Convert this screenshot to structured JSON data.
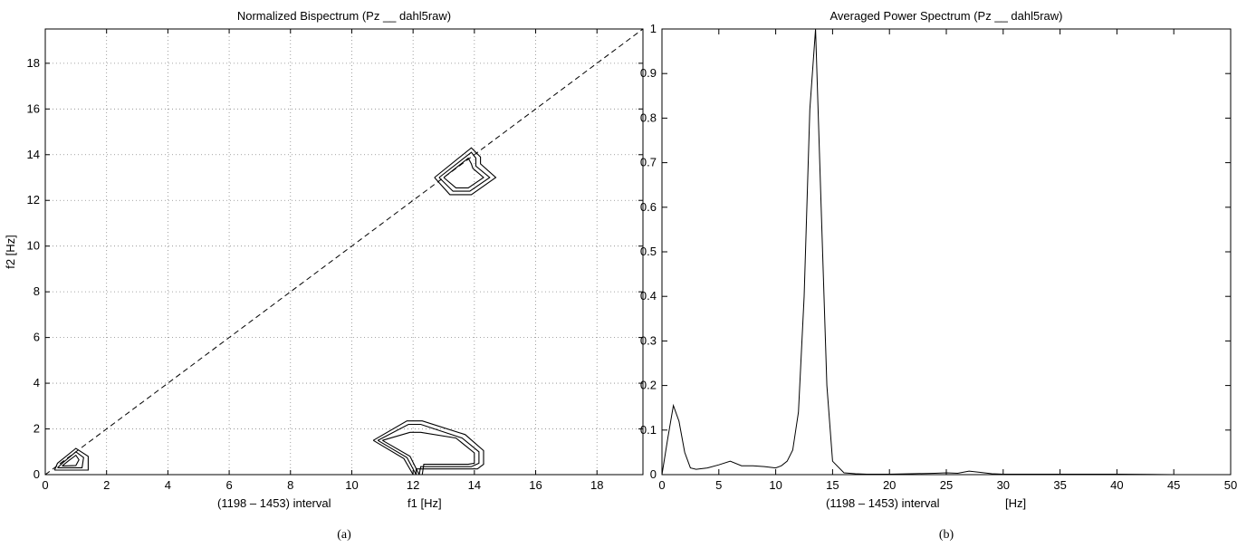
{
  "chart_data": [
    {
      "type": "contour",
      "title": "Normalized Bispectrum (Pz __ dahl5raw)",
      "xlabel": "f1 [Hz]",
      "xlabel_left": "(1198 – 1453) interval",
      "ylabel": "f2 [Hz]",
      "xlim": [
        0,
        19.5
      ],
      "ylim": [
        0,
        19.5
      ],
      "xticks": [
        "0",
        "2",
        "4",
        "6",
        "8",
        "10",
        "12",
        "14",
        "16",
        "18"
      ],
      "yticks": [
        "0",
        "2",
        "4",
        "6",
        "8",
        "10",
        "12",
        "14",
        "16",
        "18"
      ],
      "grid": true,
      "diagonal": [
        [
          0,
          0
        ],
        [
          19.5,
          19.5
        ]
      ],
      "contours": [
        [
          [
            0.3,
            0.2
          ],
          [
            0.4,
            0.5
          ],
          [
            1.0,
            1.15
          ],
          [
            1.4,
            0.8
          ],
          [
            1.4,
            0.2
          ],
          [
            0.3,
            0.2
          ]
        ],
        [
          [
            0.4,
            0.3
          ],
          [
            0.6,
            0.55
          ],
          [
            1.0,
            1.0
          ],
          [
            1.25,
            0.75
          ],
          [
            1.2,
            0.3
          ],
          [
            0.4,
            0.3
          ]
        ],
        [
          [
            0.55,
            0.38
          ],
          [
            0.75,
            0.6
          ],
          [
            1.0,
            0.85
          ],
          [
            1.1,
            0.65
          ],
          [
            1.0,
            0.4
          ],
          [
            0.55,
            0.38
          ]
        ],
        [
          [
            12.7,
            13.0
          ],
          [
            13.9,
            14.3
          ],
          [
            14.2,
            13.9
          ],
          [
            14.2,
            13.6
          ],
          [
            14.7,
            13.0
          ],
          [
            13.9,
            12.25
          ],
          [
            13.2,
            12.25
          ],
          [
            12.7,
            13.0
          ]
        ],
        [
          [
            12.85,
            13.0
          ],
          [
            13.9,
            14.1
          ],
          [
            14.05,
            13.85
          ],
          [
            14.05,
            13.5
          ],
          [
            14.5,
            13.0
          ],
          [
            13.85,
            12.4
          ],
          [
            13.3,
            12.4
          ],
          [
            12.85,
            13.0
          ]
        ],
        [
          [
            13.0,
            13.0
          ],
          [
            13.8,
            13.85
          ],
          [
            13.9,
            13.6
          ],
          [
            13.95,
            13.4
          ],
          [
            14.3,
            13.0
          ],
          [
            13.8,
            12.55
          ],
          [
            13.4,
            12.55
          ],
          [
            13.0,
            13.0
          ]
        ],
        [
          [
            10.7,
            1.5
          ],
          [
            11.8,
            2.35
          ],
          [
            12.3,
            2.35
          ],
          [
            13.7,
            1.75
          ],
          [
            14.3,
            1.05
          ],
          [
            14.3,
            0.45
          ],
          [
            14.1,
            0.25
          ],
          [
            12.1,
            0.25
          ],
          [
            12.1,
            0
          ],
          [
            12.0,
            0
          ],
          [
            11.7,
            0.7
          ],
          [
            10.7,
            1.5
          ]
        ],
        [
          [
            10.85,
            1.5
          ],
          [
            11.85,
            2.2
          ],
          [
            12.25,
            2.2
          ],
          [
            13.6,
            1.6
          ],
          [
            14.15,
            1.0
          ],
          [
            14.15,
            0.5
          ],
          [
            13.9,
            0.35
          ],
          [
            12.25,
            0.35
          ],
          [
            12.2,
            0
          ],
          [
            12.1,
            0
          ],
          [
            11.8,
            0.75
          ],
          [
            10.85,
            1.5
          ]
        ],
        [
          [
            11.0,
            1.5
          ],
          [
            11.9,
            1.85
          ],
          [
            12.25,
            1.85
          ],
          [
            13.4,
            1.6
          ],
          [
            14.0,
            0.95
          ],
          [
            14.0,
            0.5
          ],
          [
            13.8,
            0.45
          ],
          [
            12.35,
            0.45
          ],
          [
            12.3,
            0
          ],
          [
            12.2,
            0
          ],
          [
            11.9,
            0.8
          ],
          [
            11.0,
            1.5
          ]
        ]
      ]
    },
    {
      "type": "line",
      "title": "Averaged Power Spectrum (Pz __ dahl5raw)",
      "xlabel": "[Hz]",
      "xlabel_left": "(1198 – 1453) interval",
      "xlim": [
        0,
        50
      ],
      "ylim": [
        0,
        1
      ],
      "xticks": [
        "0",
        "5",
        "10",
        "15",
        "20",
        "25",
        "30",
        "35",
        "40",
        "45",
        "50"
      ],
      "yticks": [
        "0",
        "0.1",
        "0.2",
        "0.3",
        "0.4",
        "0.5",
        "0.6",
        "0.7",
        "0.8",
        "0.9",
        "1"
      ],
      "grid": false,
      "series": [
        {
          "x": [
            0,
            0.5,
            1,
            1.5,
            2,
            2.5,
            3,
            4,
            5,
            6,
            7,
            8,
            9,
            10,
            10.5,
            11,
            11.5,
            12,
            12.5,
            13,
            13.5,
            14,
            14.5,
            15,
            16,
            17,
            18,
            19,
            20,
            22,
            24,
            25,
            26,
            27,
            28,
            29,
            30,
            35,
            40,
            45,
            50
          ],
          "y": [
            0,
            0.08,
            0.155,
            0.12,
            0.05,
            0.015,
            0.012,
            0.015,
            0.022,
            0.03,
            0.02,
            0.02,
            0.018,
            0.015,
            0.02,
            0.03,
            0.055,
            0.14,
            0.4,
            0.82,
            1.0,
            0.6,
            0.2,
            0.03,
            0.004,
            0.002,
            0.001,
            0.001,
            0.001,
            0.002,
            0.003,
            0.004,
            0.003,
            0.008,
            0.005,
            0.002,
            0.001,
            0.001,
            0.001,
            0,
            0
          ]
        }
      ]
    }
  ],
  "captions": [
    "(a)",
    "(b)"
  ]
}
